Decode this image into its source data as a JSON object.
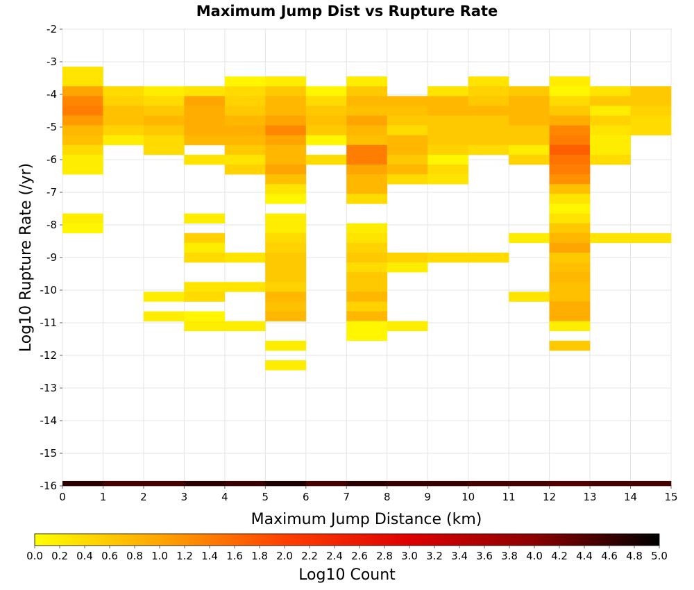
{
  "chart_data": {
    "type": "heatmap",
    "title": "Maximum Jump Dist vs Rupture Rate",
    "xlabel": "Maximum Jump Distance (km)",
    "ylabel": "Log10 Rupture Rate (/yr)",
    "xlim": [
      0,
      15
    ],
    "ylim": [
      -16,
      -2
    ],
    "x_ticks": [
      "0",
      "1",
      "2",
      "3",
      "4",
      "5",
      "6",
      "7",
      "8",
      "9",
      "10",
      "11",
      "12",
      "13",
      "14",
      "15"
    ],
    "y_ticks": [
      "-2",
      "-3",
      "-4",
      "-5",
      "-6",
      "-7",
      "-8",
      "-9",
      "-10",
      "-11",
      "-12",
      "-13",
      "-14",
      "-15",
      "-16"
    ],
    "grid": true,
    "x_bin_width": 1,
    "y_bin_height": 0.3,
    "colorbar": {
      "label": "Log10 Count",
      "range": [
        0,
        5
      ],
      "ticks": [
        "0.0",
        "0.2",
        "0.4",
        "0.6",
        "0.8",
        "1.0",
        "1.2",
        "1.4",
        "1.6",
        "1.8",
        "2.0",
        "2.2",
        "2.4",
        "2.6",
        "2.8",
        "3.0",
        "3.2",
        "3.4",
        "3.6",
        "3.8",
        "4.0",
        "4.2",
        "4.4",
        "4.6",
        "4.8",
        "5.0"
      ],
      "colors": [
        "#ffff00",
        "#ffa500",
        "#ff4000",
        "#dd0000",
        "#8b0000",
        "#000000"
      ]
    },
    "columns": [
      {
        "x": 0,
        "cells": [
          [
            -3.3,
            0.3
          ],
          [
            -3.6,
            0.3
          ],
          [
            -3.9,
            1.0
          ],
          [
            -4.2,
            1.3
          ],
          [
            -4.5,
            1.4
          ],
          [
            -4.8,
            1.1
          ],
          [
            -5.1,
            0.8
          ],
          [
            -5.4,
            0.7
          ],
          [
            -5.7,
            0.4
          ],
          [
            -6.0,
            0.2
          ],
          [
            -6.3,
            0.2
          ],
          [
            -7.8,
            0.2
          ],
          [
            -8.1,
            0.1
          ],
          [
            -16.0,
            4.7
          ]
        ]
      },
      {
        "x": 1,
        "cells": [
          [
            -3.9,
            0.4
          ],
          [
            -4.2,
            0.5
          ],
          [
            -4.5,
            0.7
          ],
          [
            -4.8,
            0.7
          ],
          [
            -5.1,
            0.5
          ],
          [
            -5.4,
            0.2
          ],
          [
            -16.0,
            4.5
          ]
        ]
      },
      {
        "x": 2,
        "cells": [
          [
            -3.9,
            0.2
          ],
          [
            -4.2,
            0.4
          ],
          [
            -4.5,
            0.6
          ],
          [
            -4.8,
            0.8
          ],
          [
            -5.1,
            0.6
          ],
          [
            -5.4,
            0.4
          ],
          [
            -5.7,
            0.4
          ],
          [
            -10.2,
            0.2
          ],
          [
            -10.8,
            0.2
          ],
          [
            -16.0,
            4.5
          ]
        ]
      },
      {
        "x": 3,
        "cells": [
          [
            -3.9,
            0.3
          ],
          [
            -4.2,
            1.0
          ],
          [
            -4.5,
            0.9
          ],
          [
            -4.8,
            0.9
          ],
          [
            -5.1,
            0.9
          ],
          [
            -5.4,
            0.8
          ],
          [
            -6.0,
            0.3
          ],
          [
            -7.8,
            0.2
          ],
          [
            -8.4,
            0.5
          ],
          [
            -8.7,
            0.2
          ],
          [
            -9.0,
            0.4
          ],
          [
            -9.9,
            0.3
          ],
          [
            -10.2,
            0.4
          ],
          [
            -10.8,
            0.1
          ],
          [
            -11.1,
            0.2
          ],
          [
            -16.0,
            4.7
          ]
        ]
      },
      {
        "x": 4,
        "cells": [
          [
            -3.6,
            0.1
          ],
          [
            -3.9,
            0.4
          ],
          [
            -4.2,
            0.5
          ],
          [
            -4.5,
            0.6
          ],
          [
            -4.8,
            0.8
          ],
          [
            -5.1,
            0.9
          ],
          [
            -5.4,
            0.8
          ],
          [
            -5.7,
            0.6
          ],
          [
            -6.0,
            0.3
          ],
          [
            -6.3,
            0.5
          ],
          [
            -9.0,
            0.3
          ],
          [
            -9.9,
            0.3
          ],
          [
            -11.1,
            0.2
          ],
          [
            -16.0,
            4.6
          ]
        ]
      },
      {
        "x": 5,
        "cells": [
          [
            -3.6,
            0.2
          ],
          [
            -3.9,
            0.6
          ],
          [
            -4.2,
            0.8
          ],
          [
            -4.5,
            0.8
          ],
          [
            -4.8,
            1.0
          ],
          [
            -5.1,
            1.3
          ],
          [
            -5.4,
            1.0
          ],
          [
            -5.7,
            0.8
          ],
          [
            -6.0,
            0.8
          ],
          [
            -6.3,
            1.0
          ],
          [
            -6.6,
            0.7
          ],
          [
            -6.9,
            0.3
          ],
          [
            -7.2,
            0.1
          ],
          [
            -7.8,
            0.2
          ],
          [
            -8.1,
            0.2
          ],
          [
            -8.4,
            0.4
          ],
          [
            -8.7,
            0.5
          ],
          [
            -9.0,
            0.6
          ],
          [
            -9.3,
            0.6
          ],
          [
            -9.6,
            0.6
          ],
          [
            -9.9,
            0.5
          ],
          [
            -10.2,
            0.8
          ],
          [
            -10.5,
            0.7
          ],
          [
            -10.8,
            0.8
          ],
          [
            -11.7,
            0.2
          ],
          [
            -12.3,
            0.2
          ],
          [
            -16.0,
            4.8
          ]
        ]
      },
      {
        "x": 6,
        "cells": [
          [
            -3.9,
            0.1
          ],
          [
            -4.2,
            0.4
          ],
          [
            -4.5,
            0.6
          ],
          [
            -4.8,
            0.7
          ],
          [
            -5.1,
            0.6
          ],
          [
            -5.4,
            0.1
          ],
          [
            -6.0,
            0.4
          ],
          [
            -16.0,
            4.5
          ]
        ]
      },
      {
        "x": 7,
        "cells": [
          [
            -3.6,
            0.2
          ],
          [
            -3.9,
            0.6
          ],
          [
            -4.2,
            0.8
          ],
          [
            -4.5,
            0.7
          ],
          [
            -4.8,
            1.0
          ],
          [
            -5.1,
            0.8
          ],
          [
            -5.4,
            0.7
          ],
          [
            -5.7,
            1.4
          ],
          [
            -6.0,
            1.4
          ],
          [
            -6.3,
            1.0
          ],
          [
            -6.6,
            0.8
          ],
          [
            -6.9,
            0.8
          ],
          [
            -7.2,
            0.4
          ],
          [
            -8.1,
            0.2
          ],
          [
            -8.4,
            0.3
          ],
          [
            -8.7,
            0.5
          ],
          [
            -9.0,
            0.6
          ],
          [
            -9.3,
            0.4
          ],
          [
            -9.6,
            0.6
          ],
          [
            -9.9,
            0.6
          ],
          [
            -10.2,
            0.8
          ],
          [
            -10.5,
            0.5
          ],
          [
            -10.8,
            0.8
          ],
          [
            -11.1,
            0.1
          ],
          [
            -11.4,
            0.1
          ],
          [
            -16.0,
            4.7
          ]
        ]
      },
      {
        "x": 8,
        "cells": [
          [
            -4.2,
            0.8
          ],
          [
            -4.5,
            0.7
          ],
          [
            -4.8,
            0.6
          ],
          [
            -5.1,
            0.4
          ],
          [
            -5.4,
            0.8
          ],
          [
            -5.7,
            0.8
          ],
          [
            -6.0,
            0.6
          ],
          [
            -6.3,
            0.8
          ],
          [
            -6.6,
            0.4
          ],
          [
            -9.0,
            0.5
          ],
          [
            -9.3,
            0.2
          ],
          [
            -11.1,
            0.2
          ],
          [
            -16.0,
            4.6
          ]
        ]
      },
      {
        "x": 9,
        "cells": [
          [
            -3.9,
            0.3
          ],
          [
            -4.2,
            0.8
          ],
          [
            -4.5,
            0.8
          ],
          [
            -4.8,
            0.6
          ],
          [
            -5.1,
            0.6
          ],
          [
            -5.4,
            0.6
          ],
          [
            -5.7,
            0.5
          ],
          [
            -6.0,
            0.1
          ],
          [
            -6.3,
            0.4
          ],
          [
            -6.6,
            0.3
          ],
          [
            -9.0,
            0.4
          ],
          [
            -16.0,
            4.6
          ]
        ]
      },
      {
        "x": 10,
        "cells": [
          [
            -3.6,
            0.3
          ],
          [
            -3.9,
            0.5
          ],
          [
            -4.2,
            0.6
          ],
          [
            -4.5,
            0.8
          ],
          [
            -4.8,
            0.6
          ],
          [
            -5.1,
            0.6
          ],
          [
            -5.4,
            0.6
          ],
          [
            -5.7,
            0.4
          ],
          [
            -9.0,
            0.4
          ],
          [
            -16.0,
            4.5
          ]
        ]
      },
      {
        "x": 11,
        "cells": [
          [
            -3.9,
            0.6
          ],
          [
            -4.2,
            0.8
          ],
          [
            -4.5,
            0.8
          ],
          [
            -4.8,
            0.8
          ],
          [
            -5.1,
            0.6
          ],
          [
            -5.4,
            0.6
          ],
          [
            -5.7,
            0.2
          ],
          [
            -6.0,
            0.5
          ],
          [
            -8.4,
            0.2
          ],
          [
            -10.2,
            0.3
          ],
          [
            -16.0,
            4.5
          ]
        ]
      },
      {
        "x": 12,
        "cells": [
          [
            -3.6,
            0.2
          ],
          [
            -3.9,
            0.1
          ],
          [
            -4.2,
            0.4
          ],
          [
            -4.5,
            0.6
          ],
          [
            -4.8,
            0.9
          ],
          [
            -5.1,
            1.3
          ],
          [
            -5.4,
            1.4
          ],
          [
            -5.7,
            1.7
          ],
          [
            -6.0,
            1.5
          ],
          [
            -6.3,
            1.4
          ],
          [
            -6.6,
            1.2
          ],
          [
            -6.9,
            0.7
          ],
          [
            -7.2,
            0.3
          ],
          [
            -7.5,
            0.1
          ],
          [
            -7.8,
            0.3
          ],
          [
            -8.1,
            0.6
          ],
          [
            -8.4,
            0.8
          ],
          [
            -8.7,
            1.0
          ],
          [
            -9.0,
            0.6
          ],
          [
            -9.3,
            0.7
          ],
          [
            -9.6,
            0.8
          ],
          [
            -9.9,
            0.7
          ],
          [
            -10.2,
            0.7
          ],
          [
            -10.5,
            0.9
          ],
          [
            -10.8,
            0.9
          ],
          [
            -11.1,
            0.2
          ],
          [
            -11.7,
            0.6
          ],
          [
            -16.0,
            4.4
          ]
        ]
      },
      {
        "x": 13,
        "cells": [
          [
            -3.9,
            0.3
          ],
          [
            -4.2,
            0.6
          ],
          [
            -4.5,
            0.2
          ],
          [
            -4.8,
            0.5
          ],
          [
            -5.1,
            0.3
          ],
          [
            -5.4,
            0.2
          ],
          [
            -5.7,
            0.2
          ],
          [
            -6.0,
            0.4
          ],
          [
            -8.4,
            0.3
          ],
          [
            -16.0,
            4.5
          ]
        ]
      },
      {
        "x": 14,
        "cells": [
          [
            -3.9,
            0.6
          ],
          [
            -4.2,
            0.6
          ],
          [
            -4.5,
            0.5
          ],
          [
            -4.8,
            0.4
          ],
          [
            -5.1,
            0.4
          ],
          [
            -8.4,
            0.3
          ],
          [
            -16.0,
            4.5
          ]
        ]
      }
    ]
  }
}
